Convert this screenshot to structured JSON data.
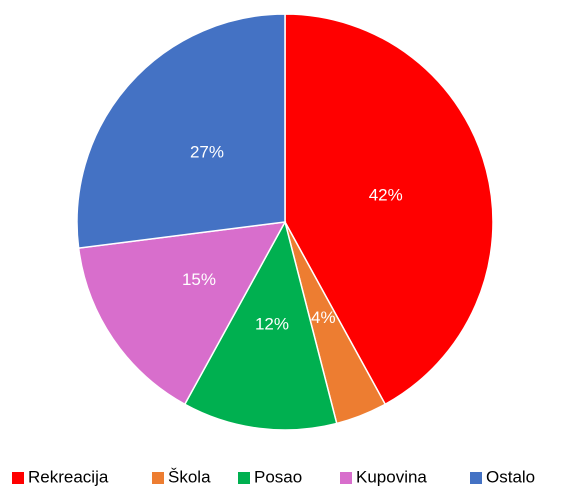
{
  "chart_data": {
    "type": "pie",
    "categories": [
      "Rekreacija",
      "Škola",
      "Posao",
      "Kupovina",
      "Ostalo"
    ],
    "values": [
      42,
      4,
      12,
      15,
      27
    ],
    "value_labels": [
      "42%",
      "4%",
      "12%",
      "15%",
      "27%"
    ],
    "colors": [
      "#ff0000",
      "#ed7d31",
      "#00b050",
      "#d86ecc",
      "#4472c4"
    ],
    "legend": "bottom"
  }
}
